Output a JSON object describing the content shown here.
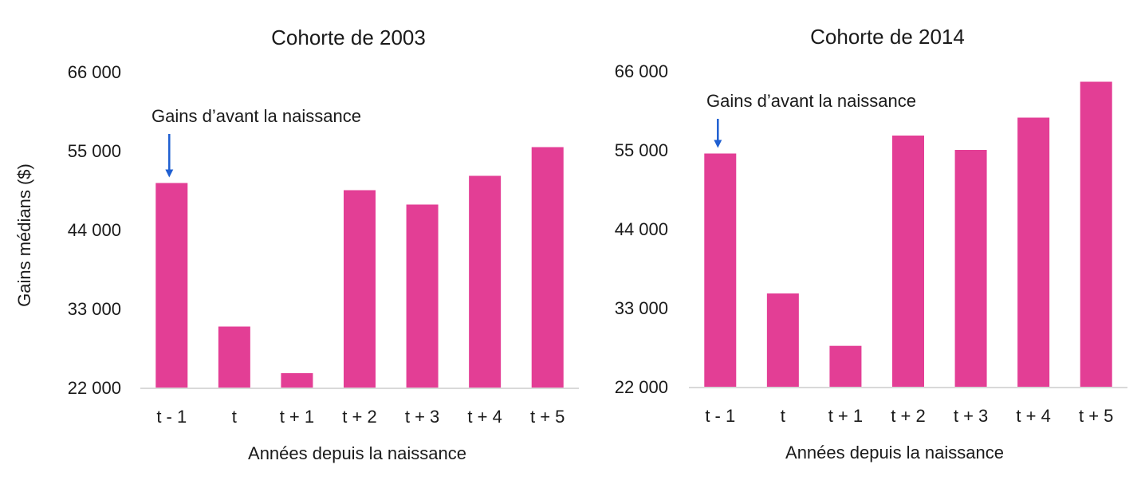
{
  "y_axis_label": "Gains médians ($)",
  "chart_data": [
    {
      "type": "bar",
      "title": "Cohorte de 2003",
      "xlabel": "Années depuis la naissance",
      "ylabel": "Gains médians ($)",
      "categories": [
        "t - 1",
        "t",
        "t + 1",
        "t + 2",
        "t + 3",
        "t + 4",
        "t + 5"
      ],
      "values": [
        50500,
        30500,
        24000,
        49500,
        47500,
        51500,
        55500
      ],
      "ylim": [
        22000,
        66000
      ],
      "yticks": [
        22000,
        33000,
        44000,
        55000,
        66000
      ],
      "ytick_labels": [
        "22 000",
        "33 000",
        "44 000",
        "55 000",
        "66 000"
      ],
      "bar_color": "#e33e95",
      "grid": false,
      "annotation": {
        "text": "Gains d’avant la naissance",
        "target": "t - 1",
        "arrow_color": "#1f5fd1"
      }
    },
    {
      "type": "bar",
      "title": "Cohorte de 2014",
      "xlabel": "Années depuis la naissance",
      "ylabel": "",
      "categories": [
        "t - 1",
        "t",
        "t + 1",
        "t + 2",
        "t + 3",
        "t + 4",
        "t + 5"
      ],
      "values": [
        54500,
        35000,
        27700,
        57000,
        55000,
        59500,
        64500
      ],
      "ylim": [
        22000,
        66000
      ],
      "yticks": [
        22000,
        33000,
        44000,
        55000,
        66000
      ],
      "ytick_labels": [
        "22 000",
        "33 000",
        "44 000",
        "55 000",
        "66 000"
      ],
      "bar_color": "#e33e95",
      "grid": false,
      "annotation": {
        "text": "Gains d’avant la naissance",
        "target": "t - 1",
        "arrow_color": "#1f5fd1"
      }
    }
  ]
}
